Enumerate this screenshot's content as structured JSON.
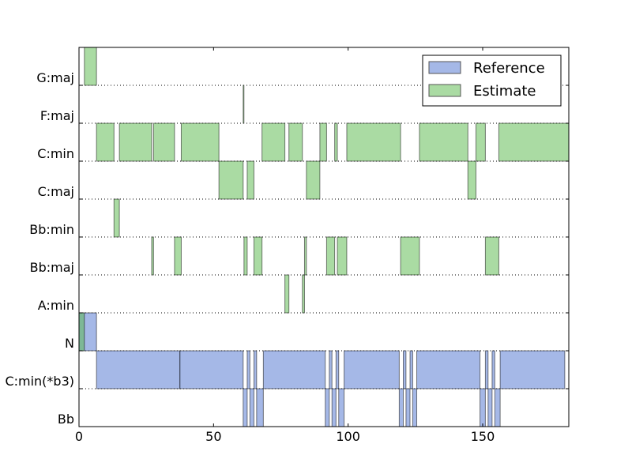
{
  "chart_data": {
    "type": "interval-timeline",
    "title": "",
    "xlabel": "",
    "ylabel": "",
    "xlim": [
      0,
      182
    ],
    "xticks": [
      0,
      50,
      100,
      150
    ],
    "grid": "dotted horizontal",
    "legend_position": "top-right",
    "categories": [
      "Bb",
      "C:min(*b3)",
      "N",
      "A:min",
      "Bb:maj",
      "Bb:min",
      "C:maj",
      "C:min",
      "F:maj",
      "G:maj"
    ],
    "series": [
      {
        "name": "Reference",
        "color": "#4c72d0",
        "intervals": [
          {
            "label": "N",
            "start": 0,
            "end": 6.5
          },
          {
            "label": "N",
            "start": 182,
            "end": 186
          },
          {
            "label": "C:min(*b3)",
            "start": 6.5,
            "end": 37.5
          },
          {
            "label": "C:min(*b3)",
            "start": 37.5,
            "end": 61
          },
          {
            "label": "C:min(*b3)",
            "start": 62.5,
            "end": 63.5
          },
          {
            "label": "C:min(*b3)",
            "start": 65,
            "end": 66
          },
          {
            "label": "C:min(*b3)",
            "start": 68.5,
            "end": 91.5
          },
          {
            "label": "C:min(*b3)",
            "start": 93,
            "end": 94
          },
          {
            "label": "C:min(*b3)",
            "start": 95.5,
            "end": 96.5
          },
          {
            "label": "C:min(*b3)",
            "start": 98.5,
            "end": 119
          },
          {
            "label": "C:min(*b3)",
            "start": 120.5,
            "end": 121.5
          },
          {
            "label": "C:min(*b3)",
            "start": 123,
            "end": 124
          },
          {
            "label": "C:min(*b3)",
            "start": 125.5,
            "end": 149
          },
          {
            "label": "C:min(*b3)",
            "start": 151,
            "end": 152
          },
          {
            "label": "C:min(*b3)",
            "start": 153.5,
            "end": 154.5
          },
          {
            "label": "C:min(*b3)",
            "start": 156.5,
            "end": 180.5
          },
          {
            "label": "Bb",
            "start": 61,
            "end": 62.5
          },
          {
            "label": "Bb",
            "start": 63.5,
            "end": 65
          },
          {
            "label": "Bb",
            "start": 66,
            "end": 68.5
          },
          {
            "label": "Bb",
            "start": 91.5,
            "end": 93
          },
          {
            "label": "Bb",
            "start": 94,
            "end": 95.5
          },
          {
            "label": "Bb",
            "start": 96.5,
            "end": 98.5
          },
          {
            "label": "Bb",
            "start": 119,
            "end": 120.5
          },
          {
            "label": "Bb",
            "start": 121.5,
            "end": 123
          },
          {
            "label": "Bb",
            "start": 124,
            "end": 125.5
          },
          {
            "label": "Bb",
            "start": 149,
            "end": 151
          },
          {
            "label": "Bb",
            "start": 152,
            "end": 153.5
          },
          {
            "label": "Bb",
            "start": 154.5,
            "end": 156.5
          }
        ]
      },
      {
        "name": "Estimate",
        "color": "#55b848",
        "intervals": [
          {
            "label": "N",
            "start": 0,
            "end": 2
          },
          {
            "label": "N",
            "start": 182,
            "end": 186
          },
          {
            "label": "G:maj",
            "start": 2,
            "end": 6.5
          },
          {
            "label": "C:min",
            "start": 6.5,
            "end": 13
          },
          {
            "label": "Bb:min",
            "start": 13,
            "end": 15
          },
          {
            "label": "C:min",
            "start": 15,
            "end": 27
          },
          {
            "label": "Bb:maj",
            "start": 27,
            "end": 27.7
          },
          {
            "label": "C:min",
            "start": 27.7,
            "end": 35.5
          },
          {
            "label": "Bb:maj",
            "start": 35.5,
            "end": 38
          },
          {
            "label": "C:min",
            "start": 38,
            "end": 52
          },
          {
            "label": "C:maj",
            "start": 52,
            "end": 61
          },
          {
            "label": "F:maj",
            "start": 61,
            "end": 61.3
          },
          {
            "label": "Bb:maj",
            "start": 61.3,
            "end": 62.5
          },
          {
            "label": "C:maj",
            "start": 62.5,
            "end": 65
          },
          {
            "label": "Bb:maj",
            "start": 65,
            "end": 68
          },
          {
            "label": "C:min",
            "start": 68,
            "end": 76.5
          },
          {
            "label": "A:min",
            "start": 76.5,
            "end": 78
          },
          {
            "label": "C:min",
            "start": 78,
            "end": 83
          },
          {
            "label": "A:min",
            "start": 83,
            "end": 83.8
          },
          {
            "label": "Bb:maj",
            "start": 83.8,
            "end": 84.5
          },
          {
            "label": "C:maj",
            "start": 84.5,
            "end": 89.5
          },
          {
            "label": "C:min",
            "start": 89.5,
            "end": 92
          },
          {
            "label": "Bb:maj",
            "start": 92,
            "end": 95
          },
          {
            "label": "C:min",
            "start": 95,
            "end": 96
          },
          {
            "label": "Bb:maj",
            "start": 96,
            "end": 99.5
          },
          {
            "label": "C:min",
            "start": 99.5,
            "end": 119.5
          },
          {
            "label": "Bb:maj",
            "start": 119.5,
            "end": 126.5
          },
          {
            "label": "C:min",
            "start": 126.5,
            "end": 144.5
          },
          {
            "label": "C:maj",
            "start": 144.5,
            "end": 147.5
          },
          {
            "label": "C:min",
            "start": 147.5,
            "end": 151
          },
          {
            "label": "Bb:maj",
            "start": 151,
            "end": 156
          },
          {
            "label": "C:min",
            "start": 156,
            "end": 182
          }
        ]
      }
    ]
  }
}
